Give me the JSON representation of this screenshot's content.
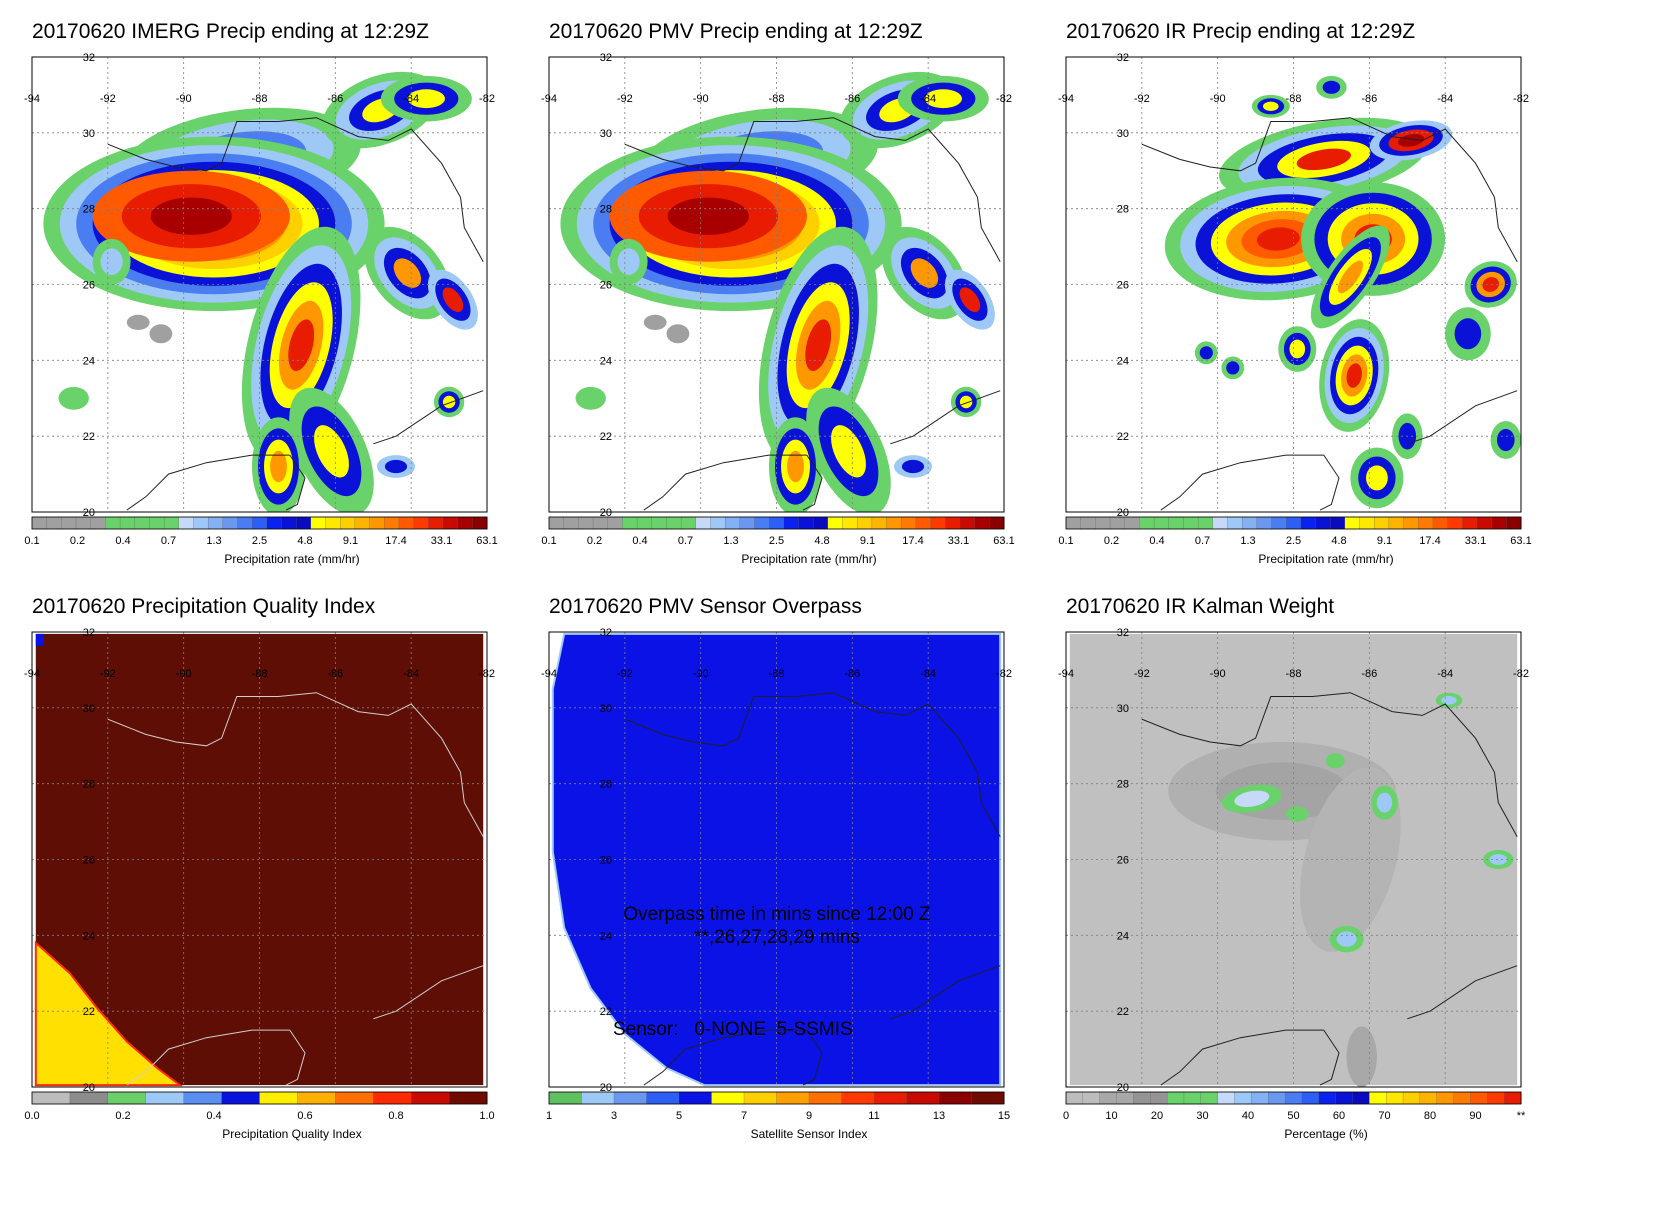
{
  "colors": {
    "precip": [
      "#a0a0a0",
      "#a0a0a0",
      "#a0a0a0",
      "#a0a0a0",
      "#a0a0a0",
      "#6ad26a",
      "#6ad26a",
      "#6ad26a",
      "#6ad26a",
      "#6ad26a",
      "#c6d9f9",
      "#9ec8f5",
      "#83b1f3",
      "#6a98ef",
      "#4a7df2",
      "#2d5ef5",
      "#0a22f0",
      "#0a12d8",
      "#0a0ac0",
      "#ffff00",
      "#ffe800",
      "#ffd000",
      "#ffb400",
      "#ff9800",
      "#ff7a00",
      "#ff5a00",
      "#ff3a00",
      "#e81c00",
      "#c80a00",
      "#a80000",
      "#8a0000"
    ],
    "qi": [
      "#bdbdbd",
      "#8c8c8c",
      "#6bce6b",
      "#9ec8f5",
      "#5a8ef0",
      "#0a12e0",
      "#ffee00",
      "#ffb000",
      "#ff7000",
      "#ff2a00",
      "#c80a00",
      "#6e0a00"
    ],
    "sensor": [
      "#60c060",
      "#9ec8f5",
      "#6a98ef",
      "#2d5ef5",
      "#0a12e6",
      "#ffff00",
      "#ffd000",
      "#ffa000",
      "#ff7000",
      "#ff3a00",
      "#e81c00",
      "#c80a00",
      "#8a0000",
      "#6e0a00"
    ],
    "pct": [
      "#bdbdbd",
      "#bdbdbd",
      "#a8a8a8",
      "#a8a8a8",
      "#949494",
      "#949494",
      "#6ad26a",
      "#6ad26a",
      "#6ad26a",
      "#c6d9f9",
      "#9ec8f5",
      "#83b1f3",
      "#6a98ef",
      "#4a7df2",
      "#2d5ef5",
      "#0a22f0",
      "#0a12d8",
      "#0a0ac0",
      "#ffff00",
      "#ffe800",
      "#ffd000",
      "#ffb400",
      "#ff9800",
      "#ff7a00",
      "#ff5a00",
      "#ff3a00",
      "#e81c00"
    ],
    "overpass": "#0a12e6",
    "qi_background": "#5e0e05",
    "qi_low": "#ffe000",
    "kalman_background": "#c0c0c0"
  },
  "map": {
    "lon_ticks": [
      "-94",
      "-92",
      "-90",
      "-88",
      "-86",
      "-84",
      "-82"
    ],
    "lat_ticks": [
      "32",
      "30",
      "28",
      "26",
      "24",
      "22",
      "20"
    ]
  },
  "panels": [
    {
      "id": "imerg",
      "title": "20170620 IMERG Precip ending at 12:29Z",
      "field": "precip",
      "colorbar_palette": "precip",
      "colorbar_ticks": [
        "0.1",
        "0.2",
        "0.4",
        "0.7",
        "1.3",
        "2.5",
        "4.8",
        "9.1",
        "17.4",
        "33.1",
        "63.1"
      ],
      "colorbar_label": "Precipitation rate (mm/hr)"
    },
    {
      "id": "pmv",
      "title": "20170620 PMV Precip ending at 12:29Z",
      "field": "precip",
      "colorbar_palette": "precip",
      "colorbar_ticks": [
        "0.1",
        "0.2",
        "0.4",
        "0.7",
        "1.3",
        "2.5",
        "4.8",
        "9.1",
        "17.4",
        "33.1",
        "63.1"
      ],
      "colorbar_label": "Precipitation rate (mm/hr)"
    },
    {
      "id": "ir",
      "title": "20170620 IR Precip ending at 12:29Z",
      "field": "ir",
      "colorbar_palette": "precip",
      "colorbar_ticks": [
        "0.1",
        "0.2",
        "0.4",
        "0.7",
        "1.3",
        "2.5",
        "4.8",
        "9.1",
        "17.4",
        "33.1",
        "63.1"
      ],
      "colorbar_label": "Precipitation rate (mm/hr)"
    },
    {
      "id": "qi",
      "title": "20170620 Precipitation Quality Index",
      "field": "qi",
      "colorbar_palette": "qi",
      "colorbar_ticks": [
        "0.0",
        "0.2",
        "0.4",
        "0.6",
        "0.8",
        "1.0"
      ],
      "colorbar_label": "Precipitation Quality Index"
    },
    {
      "id": "sensor",
      "title": "20170620 PMV Sensor Overpass",
      "field": "sensor",
      "colorbar_palette": "sensor",
      "colorbar_ticks": [
        "1",
        "3",
        "5",
        "7",
        "9",
        "11",
        "13",
        "15"
      ],
      "colorbar_label": "Satellite Sensor Index",
      "annotations": [
        "Overpass time in mins since 12:00 Z",
        "**,26,27,28,29 mins",
        "Sensor:   0-NONE  5-SSMIS"
      ]
    },
    {
      "id": "kalman",
      "title": "20170620 IR Kalman Weight",
      "field": "kalman",
      "colorbar_palette": "pct",
      "colorbar_ticks": [
        "0",
        "10",
        "20",
        "30",
        "40",
        "50",
        "60",
        "70",
        "80",
        "90",
        "**"
      ],
      "colorbar_label": "Percentage (%)"
    }
  ]
}
